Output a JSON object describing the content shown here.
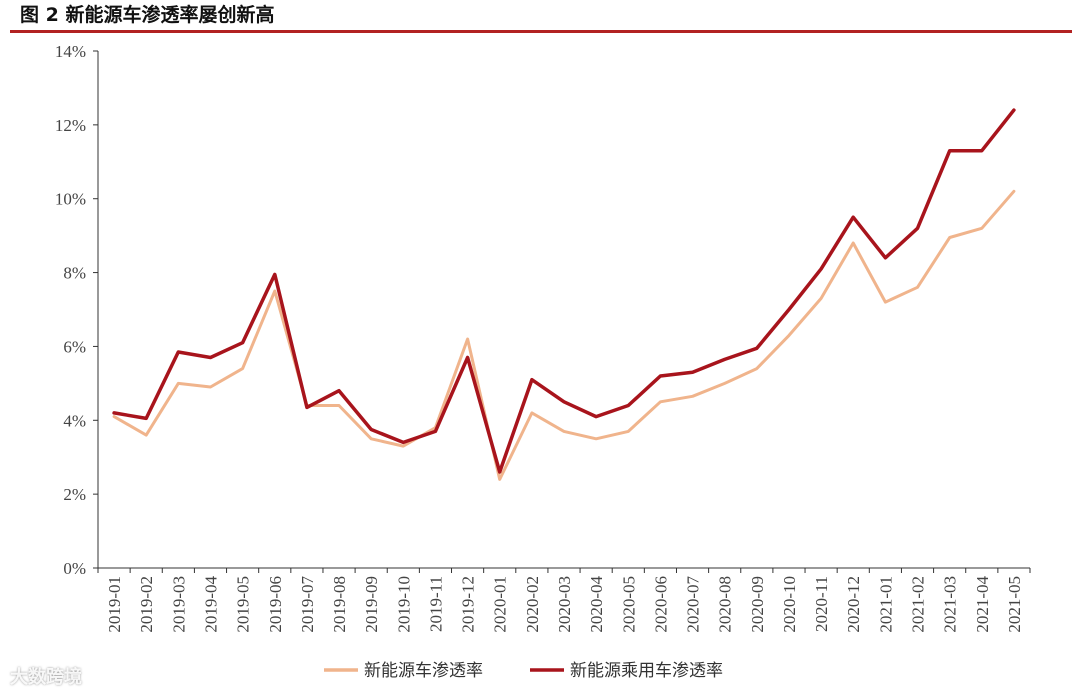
{
  "title": "图 2 新能源车渗透率屡创新高",
  "watermark_text": "大数跨境",
  "colors": {
    "title_rule": "#b22222",
    "axis": "#333333",
    "series_1": "#f0b48c",
    "series_2": "#a8141c"
  },
  "chart_data": {
    "type": "line",
    "title": "",
    "xlabel": "",
    "ylabel": "",
    "ylim": [
      0,
      14
    ],
    "yticks": [
      0,
      2,
      4,
      6,
      8,
      10,
      12,
      14
    ],
    "ytick_labels": [
      "0%",
      "2%",
      "4%",
      "6%",
      "8%",
      "10%",
      "12%",
      "14%"
    ],
    "grid": false,
    "legend_position": "bottom",
    "categories": [
      "2019-01",
      "2019-02",
      "2019-03",
      "2019-04",
      "2019-05",
      "2019-06",
      "2019-07",
      "2019-08",
      "2019-09",
      "2019-10",
      "2019-11",
      "2019-12",
      "2020-01",
      "2020-02",
      "2020-03",
      "2020-04",
      "2020-05",
      "2020-06",
      "2020-07",
      "2020-08",
      "2020-09",
      "2020-10",
      "2020-11",
      "2020-12",
      "2021-01",
      "2021-02",
      "2021-03",
      "2021-04",
      "2021-05"
    ],
    "series": [
      {
        "name": "新能源车渗透率",
        "values": [
          4.1,
          3.6,
          5.0,
          4.9,
          5.4,
          7.5,
          4.4,
          4.4,
          3.5,
          3.3,
          3.8,
          6.2,
          2.4,
          4.2,
          3.7,
          3.5,
          3.7,
          4.5,
          4.65,
          5.0,
          5.4,
          6.3,
          7.3,
          8.8,
          7.2,
          7.6,
          8.95,
          9.2,
          10.2
        ]
      },
      {
        "name": "新能源乘用车渗透率",
        "values": [
          4.2,
          4.05,
          5.85,
          5.7,
          6.1,
          7.95,
          4.35,
          4.8,
          3.75,
          3.4,
          3.7,
          5.7,
          2.6,
          5.1,
          4.5,
          4.1,
          4.4,
          5.2,
          5.3,
          5.65,
          5.95,
          7.0,
          8.1,
          9.5,
          8.4,
          9.2,
          11.3,
          11.3,
          12.4
        ]
      }
    ]
  }
}
